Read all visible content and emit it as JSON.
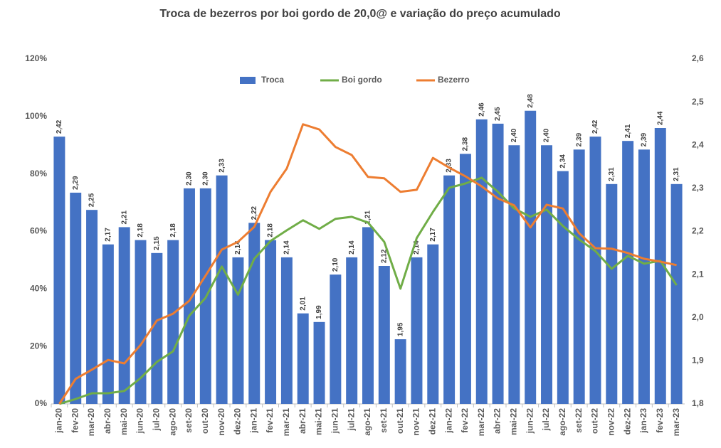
{
  "chart_data": {
    "type": "bar",
    "title": "Troca de bezerros por boi gordo de 20,0@ e variação do preço acumulado",
    "categories": [
      "jan-20",
      "fev-20",
      "mar-20",
      "abr-20",
      "mai-20",
      "jun-20",
      "jul-20",
      "ago-20",
      "set-20",
      "out-20",
      "nov-20",
      "dez-20",
      "jan-21",
      "fev-21",
      "mar-21",
      "abr-21",
      "mai-21",
      "jun-21",
      "jul-21",
      "ago-21",
      "set-21",
      "out-21",
      "nov-21",
      "dez-21",
      "jan-22",
      "fev-22",
      "mar-22",
      "abr-22",
      "mai-22",
      "jun-22",
      "jul-22",
      "ago-22",
      "set-22",
      "out-22",
      "nov-22",
      "dez-22",
      "jan-23",
      "fev-23",
      "mar-23"
    ],
    "series": [
      {
        "name": "Troca",
        "type": "bar",
        "axis": "y2",
        "color": "#4472c4",
        "values": [
          2.42,
          2.29,
          2.25,
          2.17,
          2.21,
          2.18,
          2.15,
          2.18,
          2.3,
          2.3,
          2.33,
          2.14,
          2.22,
          2.18,
          2.14,
          2.01,
          1.99,
          2.1,
          2.14,
          2.21,
          2.12,
          1.95,
          2.14,
          2.17,
          2.33,
          2.38,
          2.46,
          2.45,
          2.4,
          2.48,
          2.4,
          2.34,
          2.39,
          2.42,
          2.31,
          2.41,
          2.39,
          2.44,
          2.31
        ],
        "value_labels": [
          "2,42",
          "2,29",
          "2,25",
          "2,17",
          "2,21",
          "2,18",
          "2,15",
          "2,18",
          "2,30",
          "2,30",
          "2,33",
          "2,14",
          "2,22",
          "2,18",
          "2,14",
          "2,01",
          "1,99",
          "2,10",
          "2,14",
          "2,21",
          "2,12",
          "1,95",
          "2,14",
          "2,17",
          "2,33",
          "2,38",
          "2,46",
          "2,45",
          "2,40",
          "2,48",
          "2,40",
          "2,34",
          "2,39",
          "2,42",
          "2,31",
          "2,41",
          "2,39",
          "2,44",
          "2,31"
        ]
      },
      {
        "name": "Boi gordo",
        "type": "line",
        "color": "#70ad47",
        "values": [
          0,
          1.7,
          3.7,
          3.7,
          4.5,
          9,
          14.6,
          18.3,
          30.7,
          36.9,
          47.8,
          38,
          50.5,
          56.7,
          60.4,
          63.9,
          60.9,
          64.4,
          65.1,
          63.1,
          56.4,
          40.1,
          57.7,
          66.8,
          75.2,
          76.7,
          78.7,
          73.8,
          68,
          65.1,
          67.6,
          61.9,
          57.2,
          53.2,
          47,
          51.5,
          48.8,
          49.8,
          41.3
        ]
      },
      {
        "name": "Bezerro",
        "type": "line",
        "color": "#ed7d31",
        "values": [
          0,
          8.7,
          11.9,
          15.3,
          14.1,
          20.5,
          29,
          31.4,
          35.9,
          44.6,
          53.7,
          56.4,
          61.6,
          73.8,
          81.9,
          97.3,
          95.5,
          89.4,
          86.6,
          79,
          78.5,
          73.8,
          74.5,
          85.6,
          82.2,
          79.2,
          75.7,
          71.5,
          69.1,
          61.4,
          69.3,
          68,
          59.4,
          54.2,
          54,
          52.5,
          50.5,
          49.5,
          48.3
        ]
      }
    ],
    "ylim": [
      0,
      120
    ],
    "yticks": [
      {
        "value": 0,
        "label": "0%"
      },
      {
        "value": 20,
        "label": "20%"
      },
      {
        "value": 40,
        "label": "40%"
      },
      {
        "value": 60,
        "label": "60%"
      },
      {
        "value": 80,
        "label": "80%"
      },
      {
        "value": 100,
        "label": "100%"
      },
      {
        "value": 120,
        "label": "120%"
      }
    ],
    "y2lim": [
      1.8,
      2.6
    ],
    "y2ticks": [
      {
        "value": 1.8,
        "label": "1,8"
      },
      {
        "value": 1.9,
        "label": "1,9"
      },
      {
        "value": 2.0,
        "label": "2,0"
      },
      {
        "value": 2.1,
        "label": "2,1"
      },
      {
        "value": 2.2,
        "label": "2,2"
      },
      {
        "value": 2.3,
        "label": "2,3"
      },
      {
        "value": 2.4,
        "label": "2,4"
      },
      {
        "value": 2.5,
        "label": "2,5"
      },
      {
        "value": 2.6,
        "label": "2,6"
      }
    ],
    "grid": false,
    "legend": "top"
  }
}
